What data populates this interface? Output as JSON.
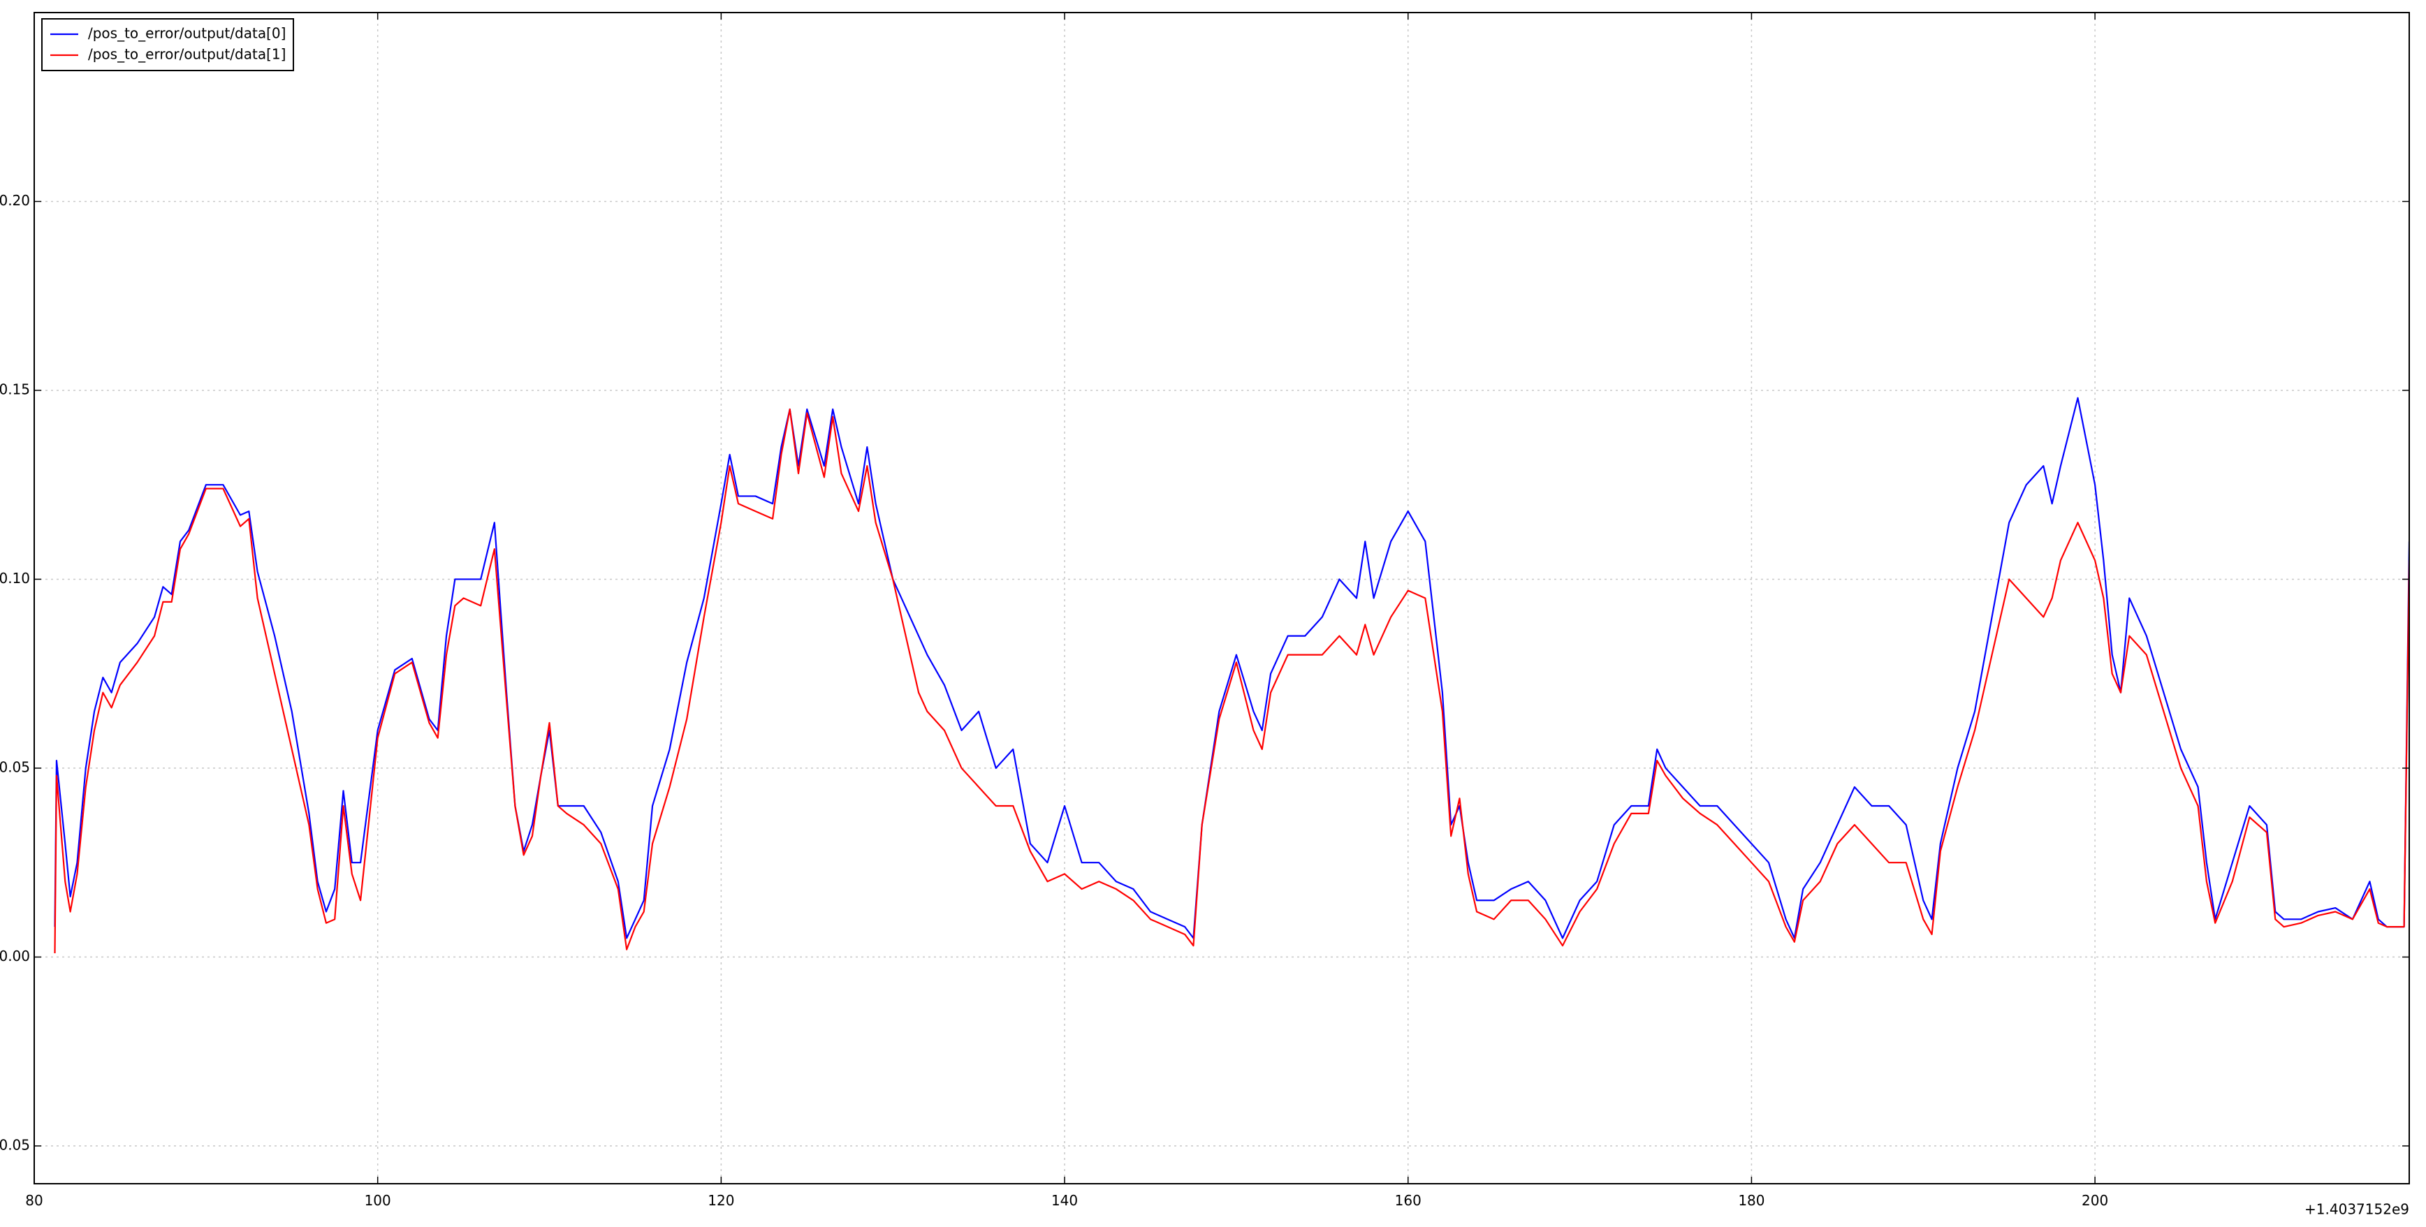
{
  "chart_data": {
    "type": "line",
    "x_offset_label": "+1.4037152e9",
    "legend": "upper left",
    "grid": true,
    "xlim": [
      80,
      218.3
    ],
    "ylim": [
      -0.06,
      0.25
    ],
    "xticks": [
      80,
      100,
      120,
      140,
      160,
      180,
      200
    ],
    "yticks": [
      -0.05,
      {
        "value": 0,
        "label": "0.00"
      },
      0.05,
      {
        "value": 0.1,
        "label": "0.10"
      },
      0.15,
      {
        "value": 0.2,
        "label": "0.20"
      }
    ],
    "x": [
      81.2,
      81.3,
      81.8,
      82.1,
      82.5,
      83,
      83.5,
      84,
      84.5,
      85,
      86,
      87,
      87.5,
      88,
      88.5,
      89,
      90,
      91,
      92,
      92.5,
      93,
      94,
      95,
      96,
      96.5,
      97,
      97.5,
      98,
      98.5,
      99,
      100,
      101,
      102,
      103,
      103.5,
      104,
      104.5,
      105,
      106,
      106.8,
      107.5,
      108,
      108.5,
      109,
      109.5,
      110,
      110.5,
      111,
      112,
      113,
      114,
      114.5,
      115,
      115.5,
      116,
      117,
      118,
      119,
      120,
      120.5,
      121,
      122,
      123,
      123.5,
      124,
      124.5,
      125,
      126,
      126.5,
      127,
      128,
      128.5,
      129,
      130,
      131,
      131.5,
      132,
      133,
      134,
      135,
      136,
      137,
      138,
      139,
      140,
      141,
      142,
      143,
      144,
      145,
      146,
      147,
      147.5,
      148,
      149,
      150,
      151,
      151.5,
      152,
      153,
      154,
      155,
      156,
      157,
      157.5,
      158,
      159,
      160,
      161,
      162,
      162.5,
      163,
      163.5,
      164,
      165,
      166,
      167,
      168,
      169,
      170,
      171,
      172,
      173,
      174,
      174.5,
      175,
      176,
      177,
      178,
      179,
      180,
      181,
      182,
      182.5,
      183,
      184,
      185,
      186,
      187,
      188,
      189,
      190,
      190.5,
      191,
      192,
      193,
      194,
      195,
      196,
      197,
      197.5,
      198,
      199,
      200,
      200.5,
      201,
      201.5,
      202,
      203,
      204,
      205,
      206,
      206.5,
      207,
      208,
      209,
      210,
      210.5,
      211,
      212,
      213,
      214,
      215,
      216,
      216.5,
      217,
      218,
      218.3
    ],
    "series": [
      {
        "name": "/pos_to_error/output/data[0]",
        "color": "#0000ff",
        "values": [
          0.008,
          0.052,
          0.03,
          0.016,
          0.025,
          0.05,
          0.065,
          0.074,
          0.07,
          0.078,
          0.083,
          0.09,
          0.098,
          0.096,
          0.11,
          0.113,
          0.125,
          0.125,
          0.117,
          0.118,
          0.102,
          0.085,
          0.065,
          0.038,
          0.02,
          0.012,
          0.018,
          0.044,
          0.025,
          0.025,
          0.06,
          0.076,
          0.079,
          0.063,
          0.06,
          0.085,
          0.1,
          0.1,
          0.1,
          0.115,
          0.07,
          0.04,
          0.028,
          0.035,
          0.048,
          0.06,
          0.04,
          0.04,
          0.04,
          0.033,
          0.02,
          0.005,
          0.01,
          0.015,
          0.04,
          0.055,
          0.078,
          0.095,
          0.12,
          0.133,
          0.122,
          0.122,
          0.12,
          0.135,
          0.145,
          0.13,
          0.145,
          0.13,
          0.145,
          0.135,
          0.12,
          0.135,
          0.12,
          0.1,
          0.09,
          0.085,
          0.08,
          0.072,
          0.06,
          0.065,
          0.05,
          0.055,
          0.03,
          0.025,
          0.04,
          0.025,
          0.025,
          0.02,
          0.018,
          0.012,
          0.01,
          0.008,
          0.005,
          0.035,
          0.065,
          0.08,
          0.065,
          0.06,
          0.075,
          0.085,
          0.085,
          0.09,
          0.1,
          0.095,
          0.11,
          0.095,
          0.11,
          0.118,
          0.11,
          0.07,
          0.035,
          0.04,
          0.025,
          0.015,
          0.015,
          0.018,
          0.02,
          0.015,
          0.005,
          0.015,
          0.02,
          0.035,
          0.04,
          0.04,
          0.055,
          0.05,
          0.045,
          0.04,
          0.04,
          0.035,
          0.03,
          0.025,
          0.01,
          0.005,
          0.018,
          0.025,
          0.035,
          0.045,
          0.04,
          0.04,
          0.035,
          0.015,
          0.01,
          0.03,
          0.05,
          0.065,
          0.09,
          0.115,
          0.125,
          0.13,
          0.12,
          0.13,
          0.148,
          0.125,
          0.105,
          0.08,
          0.07,
          0.095,
          0.085,
          0.07,
          0.055,
          0.045,
          0.025,
          0.01,
          0.025,
          0.04,
          0.035,
          0.012,
          0.01,
          0.01,
          0.012,
          0.013,
          0.01,
          0.02,
          0.01,
          0.008,
          0.008,
          0.11
        ]
      },
      {
        "name": "/pos_to_error/output/data[1]",
        "color": "#ff0000",
        "values": [
          0.001,
          0.048,
          0.02,
          0.012,
          0.022,
          0.045,
          0.06,
          0.07,
          0.066,
          0.072,
          0.078,
          0.085,
          0.094,
          0.094,
          0.108,
          0.112,
          0.124,
          0.124,
          0.114,
          0.116,
          0.095,
          0.075,
          0.055,
          0.035,
          0.018,
          0.009,
          0.01,
          0.04,
          0.022,
          0.015,
          0.058,
          0.075,
          0.078,
          0.062,
          0.058,
          0.08,
          0.093,
          0.095,
          0.093,
          0.108,
          0.068,
          0.04,
          0.027,
          0.032,
          0.048,
          0.062,
          0.04,
          0.038,
          0.035,
          0.03,
          0.018,
          0.002,
          0.008,
          0.012,
          0.03,
          0.045,
          0.063,
          0.09,
          0.115,
          0.13,
          0.12,
          0.118,
          0.116,
          0.133,
          0.145,
          0.128,
          0.144,
          0.127,
          0.143,
          0.128,
          0.118,
          0.13,
          0.115,
          0.1,
          0.08,
          0.07,
          0.065,
          0.06,
          0.05,
          0.045,
          0.04,
          0.04,
          0.028,
          0.02,
          0.022,
          0.018,
          0.02,
          0.018,
          0.015,
          0.01,
          0.008,
          0.006,
          0.003,
          0.035,
          0.063,
          0.078,
          0.06,
          0.055,
          0.07,
          0.08,
          0.08,
          0.08,
          0.085,
          0.08,
          0.088,
          0.08,
          0.09,
          0.097,
          0.095,
          0.065,
          0.032,
          0.042,
          0.022,
          0.012,
          0.01,
          0.015,
          0.015,
          0.01,
          0.003,
          0.012,
          0.018,
          0.03,
          0.038,
          0.038,
          0.052,
          0.048,
          0.042,
          0.038,
          0.035,
          0.03,
          0.025,
          0.02,
          0.008,
          0.004,
          0.015,
          0.02,
          0.03,
          0.035,
          0.03,
          0.025,
          0.025,
          0.01,
          0.006,
          0.028,
          0.045,
          0.06,
          0.08,
          0.1,
          0.095,
          0.09,
          0.095,
          0.105,
          0.115,
          0.105,
          0.095,
          0.075,
          0.07,
          0.085,
          0.08,
          0.065,
          0.05,
          0.04,
          0.02,
          0.009,
          0.02,
          0.037,
          0.033,
          0.01,
          0.008,
          0.009,
          0.011,
          0.012,
          0.01,
          0.018,
          0.009,
          0.008,
          0.008,
          0.105
        ]
      }
    ]
  }
}
